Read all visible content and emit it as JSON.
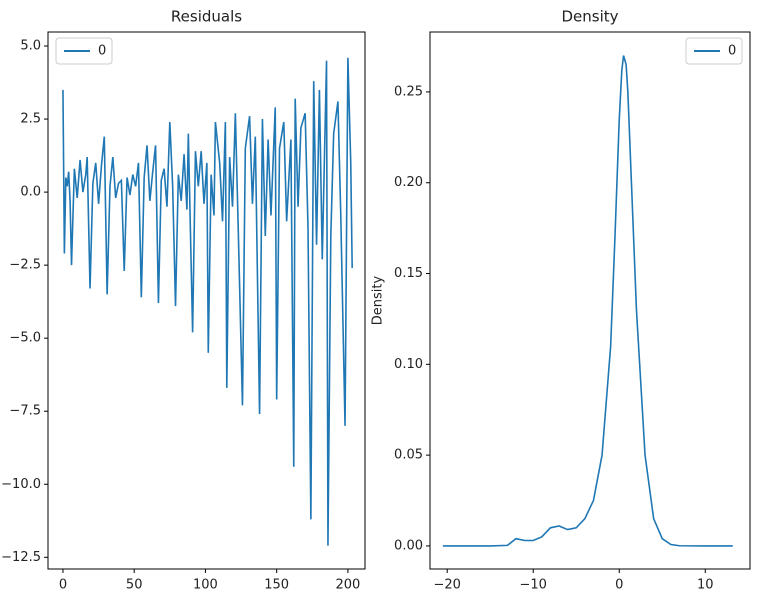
{
  "chart_data": [
    {
      "type": "line",
      "title": "Residuals",
      "legend": "upper left",
      "x": [
        0,
        1,
        2,
        3,
        4,
        5,
        6,
        8,
        10,
        12,
        14,
        16,
        17,
        19,
        21,
        23,
        25,
        27,
        29,
        31,
        33,
        35,
        37,
        39,
        41,
        43,
        45,
        47,
        49,
        51,
        53,
        55,
        57,
        59,
        61,
        63,
        65,
        67,
        69,
        71,
        73,
        75,
        77,
        79,
        81,
        83,
        85,
        87,
        88,
        91,
        93,
        95,
        97,
        99,
        101,
        102,
        104,
        106,
        107,
        110,
        112,
        114,
        115,
        117,
        119,
        121,
        123,
        126,
        128,
        131,
        133,
        135,
        138,
        140,
        142,
        144,
        146,
        149,
        150,
        152,
        155,
        157,
        160,
        162,
        163,
        165,
        167,
        170,
        172,
        174,
        176,
        178,
        180,
        182,
        185,
        186,
        188,
        190,
        193,
        195,
        198,
        200,
        202,
        203
      ],
      "series": [
        {
          "name": "0",
          "color": "#1f77b4",
          "values": [
            3.5,
            -2.1,
            0.5,
            0.2,
            0.7,
            -0.3,
            -2.5,
            0.8,
            -0.2,
            1.1,
            0.0,
            0.6,
            1.2,
            -3.3,
            0.3,
            1.0,
            -0.4,
            0.9,
            1.9,
            -3.5,
            0.2,
            1.2,
            -0.2,
            0.3,
            0.4,
            -2.7,
            0.5,
            -0.1,
            0.6,
            0.2,
            1.0,
            -3.6,
            0.5,
            1.6,
            -0.3,
            0.7,
            1.6,
            -3.8,
            0.4,
            0.8,
            -0.5,
            2.4,
            0.2,
            -3.9,
            0.6,
            -0.3,
            1.3,
            -0.6,
            2.0,
            -4.8,
            1.4,
            0.2,
            1.4,
            -0.4,
            1.0,
            -5.5,
            0.6,
            -0.8,
            2.4,
            1.0,
            -1.0,
            2.4,
            -6.7,
            1.2,
            -0.5,
            2.7,
            -1.2,
            -7.3,
            1.5,
            2.6,
            -0.4,
            1.9,
            -7.6,
            2.5,
            -1.5,
            1.8,
            -0.8,
            2.9,
            -7.1,
            1.5,
            2.4,
            -1.0,
            1.8,
            -9.4,
            3.2,
            -0.5,
            2.2,
            2.7,
            -1.2,
            -11.2,
            3.8,
            -1.8,
            3.5,
            -2.3,
            4.5,
            -12.1,
            -1.5,
            2.0,
            3.1,
            -0.8,
            -8.0,
            4.6,
            1.0,
            -2.6
          ]
        }
      ],
      "xlim": [
        -10.5,
        212
      ],
      "xticks": [
        0,
        50,
        100,
        150,
        200
      ],
      "ylim": [
        -12.9,
        5.48
      ],
      "yticks": [
        {
          "value": -12.5,
          "label": "−12.5"
        },
        {
          "value": -10,
          "label": "−10.0"
        },
        {
          "value": -7.5,
          "label": "−7.5"
        },
        {
          "value": -5,
          "label": "−5.0"
        },
        {
          "value": -2.5,
          "label": "−2.5"
        },
        {
          "value": 0,
          "label": "0.0"
        },
        {
          "value": 2.5,
          "label": "2.5"
        },
        {
          "value": 5,
          "label": "5.0"
        }
      ]
    },
    {
      "type": "line",
      "title": "Density",
      "ylabel": "Density",
      "legend": "upper right",
      "x": [
        -20.5,
        -15,
        -13,
        -12,
        -11,
        -10,
        -9,
        -8,
        -7,
        -6,
        -5,
        -4,
        -3,
        -2,
        -1,
        -0.5,
        0,
        0.3,
        0.5,
        0.8,
        1,
        1.5,
        2,
        3,
        4,
        5,
        6,
        7,
        10,
        13.2
      ],
      "series": [
        {
          "name": "0",
          "color": "#1f77b4",
          "values": [
            0,
            0,
            0.0003,
            0.004,
            0.003,
            0.003,
            0.005,
            0.01,
            0.011,
            0.009,
            0.01,
            0.015,
            0.025,
            0.05,
            0.11,
            0.17,
            0.235,
            0.262,
            0.27,
            0.265,
            0.25,
            0.19,
            0.13,
            0.05,
            0.015,
            0.004,
            0.0008,
            0.0001,
            0,
            0
          ]
        }
      ],
      "xlim": [
        -22,
        15.2
      ],
      "xticks": [
        {
          "value": -20,
          "label": "−20"
        },
        {
          "value": -10,
          "label": "−10"
        },
        0,
        10
      ],
      "ylim": [
        -0.0127,
        0.283
      ],
      "yticks": [
        {
          "value": 0,
          "label": "0.00"
        },
        {
          "value": 0.05,
          "label": "0.05"
        },
        {
          "value": 0.1,
          "label": "0.10"
        },
        {
          "value": 0.15,
          "label": "0.15"
        },
        {
          "value": 0.2,
          "label": "0.20"
        },
        {
          "value": 0.25,
          "label": "0.25"
        }
      ]
    }
  ]
}
